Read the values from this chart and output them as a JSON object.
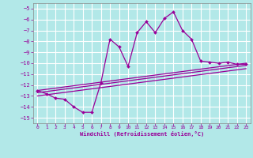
{
  "xlabel": "Windchill (Refroidissement éolien,°C)",
  "background_color": "#b2e8e8",
  "grid_color": "#ffffff",
  "line_color": "#990099",
  "xlim": [
    -0.5,
    23.5
  ],
  "ylim": [
    -15.5,
    -4.5
  ],
  "yticks": [
    -15,
    -14,
    -13,
    -12,
    -11,
    -10,
    -9,
    -8,
    -7,
    -6,
    -5
  ],
  "xticks": [
    0,
    1,
    2,
    3,
    4,
    5,
    6,
    7,
    8,
    9,
    10,
    11,
    12,
    13,
    14,
    15,
    16,
    17,
    18,
    19,
    20,
    21,
    22,
    23
  ],
  "main_x": [
    0,
    1,
    2,
    3,
    4,
    5,
    6,
    7,
    8,
    9,
    10,
    11,
    12,
    13,
    14,
    15,
    16,
    17,
    18,
    19,
    20,
    21,
    22,
    23
  ],
  "main_y": [
    -12.5,
    -12.8,
    -13.2,
    -13.3,
    -14.0,
    -14.5,
    -14.5,
    -11.8,
    -7.8,
    -8.5,
    -10.3,
    -7.2,
    -6.2,
    -7.2,
    -5.9,
    -5.3,
    -7.0,
    -7.8,
    -9.8,
    -9.9,
    -10.0,
    -9.9,
    -10.1,
    -10.1
  ],
  "line1_x": [
    0,
    23
  ],
  "line1_y": [
    -12.5,
    -10.0
  ],
  "line2_x": [
    0,
    23
  ],
  "line2_y": [
    -12.7,
    -10.2
  ],
  "line3_x": [
    0,
    23
  ],
  "line3_y": [
    -13.0,
    -10.5
  ]
}
